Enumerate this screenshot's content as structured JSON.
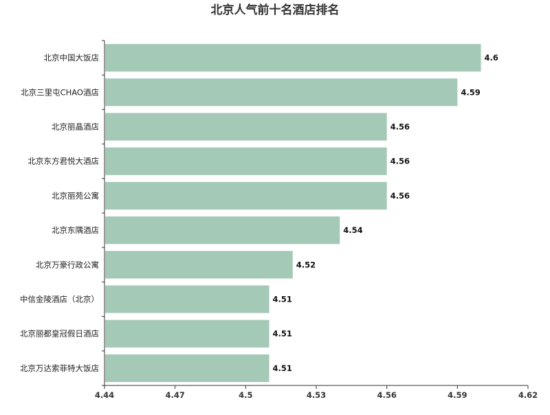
{
  "chart_data": {
    "type": "bar",
    "orientation": "horizontal",
    "title": "北京人气前十名酒店排名",
    "xlabel": "",
    "ylabel": "",
    "categories": [
      "北京中国大饭店",
      "北京三里屯CHAO酒店",
      "北京丽晶酒店",
      "北京东方君悦大酒店",
      "北京丽苑公寓",
      "北京东隅酒店",
      "北京万豪行政公寓",
      "中信金陵酒店（北京）",
      "北京丽都皇冠假日酒店",
      "北京万达索菲特大饭店"
    ],
    "values": [
      4.6,
      4.59,
      4.56,
      4.56,
      4.56,
      4.54,
      4.52,
      4.51,
      4.51,
      4.51
    ],
    "value_labels": [
      "4.6",
      "4.59",
      "4.56",
      "4.56",
      "4.56",
      "4.54",
      "4.52",
      "4.51",
      "4.51",
      "4.51"
    ],
    "xlim": [
      4.44,
      4.62
    ],
    "x_ticks": [
      4.44,
      4.47,
      4.5,
      4.53,
      4.56,
      4.59,
      4.62
    ],
    "x_tick_labels": [
      "4.44",
      "4.47",
      "4.5",
      "4.53",
      "4.56",
      "4.59",
      "4.62"
    ],
    "grid": false,
    "legend": "none",
    "colors": {
      "bar": "#a5c9b7",
      "axis": "#333333",
      "title": "#333333"
    }
  }
}
